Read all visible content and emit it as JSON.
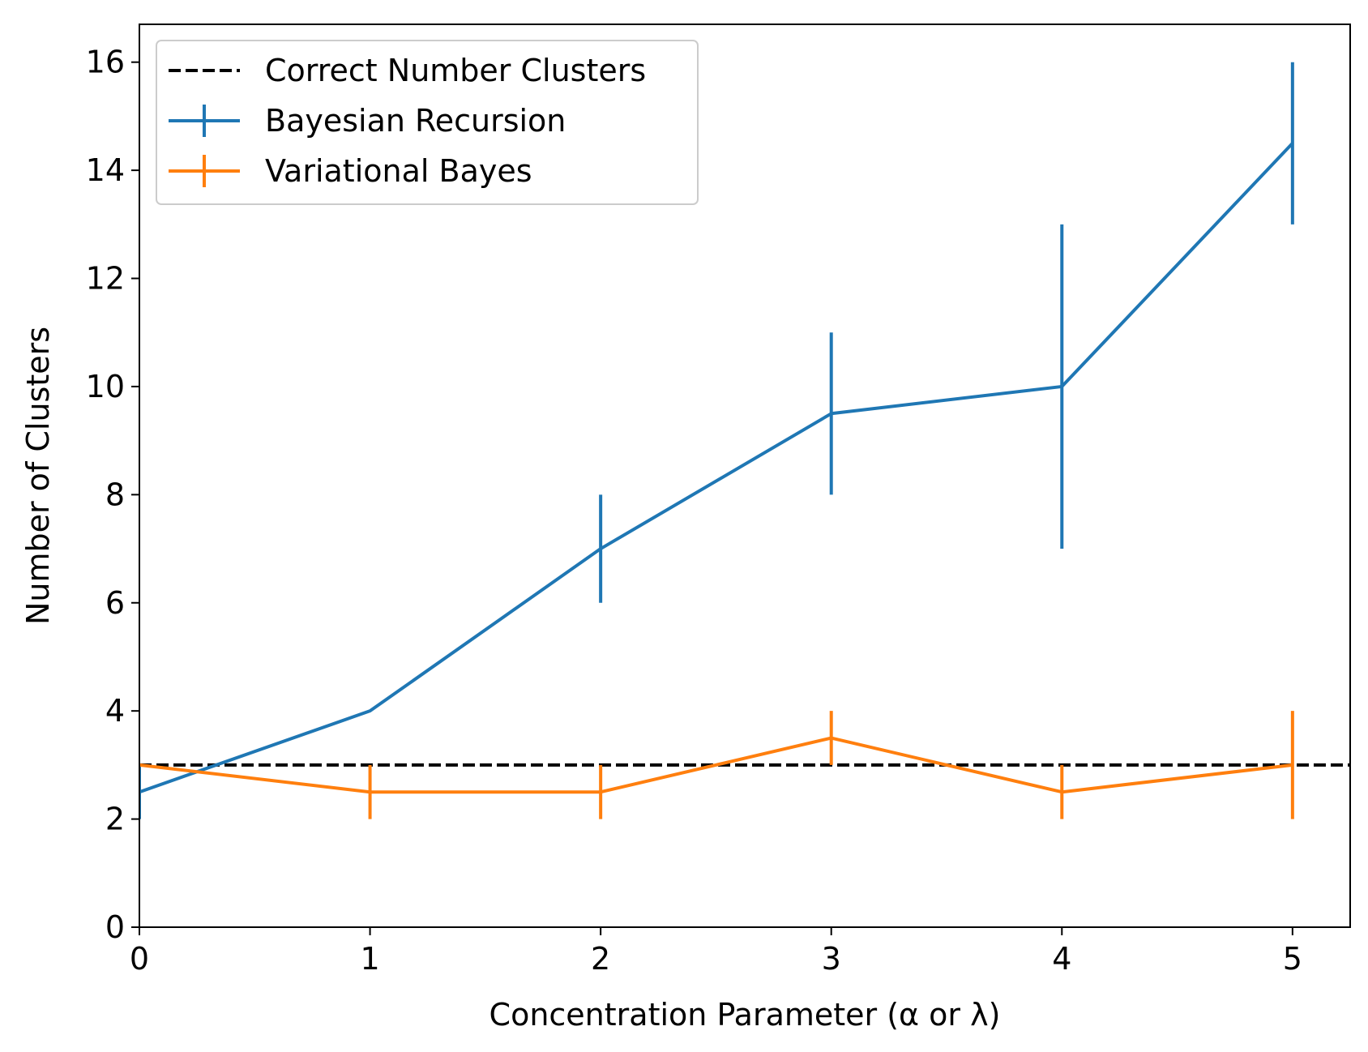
{
  "chart_data": {
    "type": "line",
    "title": "",
    "xlabel": "Concentration Parameter (α or λ)",
    "ylabel": "Number of Clusters",
    "xlim": [
      0,
      5.25
    ],
    "ylim": [
      0,
      16.7
    ],
    "xticks": [
      0,
      1,
      2,
      3,
      4,
      5
    ],
    "yticks": [
      0,
      2,
      4,
      6,
      8,
      10,
      12,
      14,
      16
    ],
    "grid": false,
    "legend_position": "top-left",
    "reference_line": {
      "name": "Correct Number Clusters",
      "y": 3,
      "color": "#000000",
      "style": "dashed"
    },
    "x": [
      0,
      1,
      2,
      3,
      4,
      5
    ],
    "series": [
      {
        "name": "Bayesian Recursion",
        "color": "#1f77b4",
        "values": [
          2.5,
          4,
          7,
          9.5,
          10,
          14.5
        ],
        "error_low": [
          2,
          4,
          6,
          8,
          7,
          13
        ],
        "error_high": [
          3,
          4,
          8,
          11,
          13,
          16
        ]
      },
      {
        "name": "Variational Bayes",
        "color": "#ff7f0e",
        "values": [
          3,
          2.5,
          2.5,
          3.5,
          2.5,
          3
        ],
        "error_low": [
          3,
          2,
          2,
          3,
          2,
          2
        ],
        "error_high": [
          3,
          3,
          3,
          4,
          3,
          4
        ]
      }
    ]
  }
}
